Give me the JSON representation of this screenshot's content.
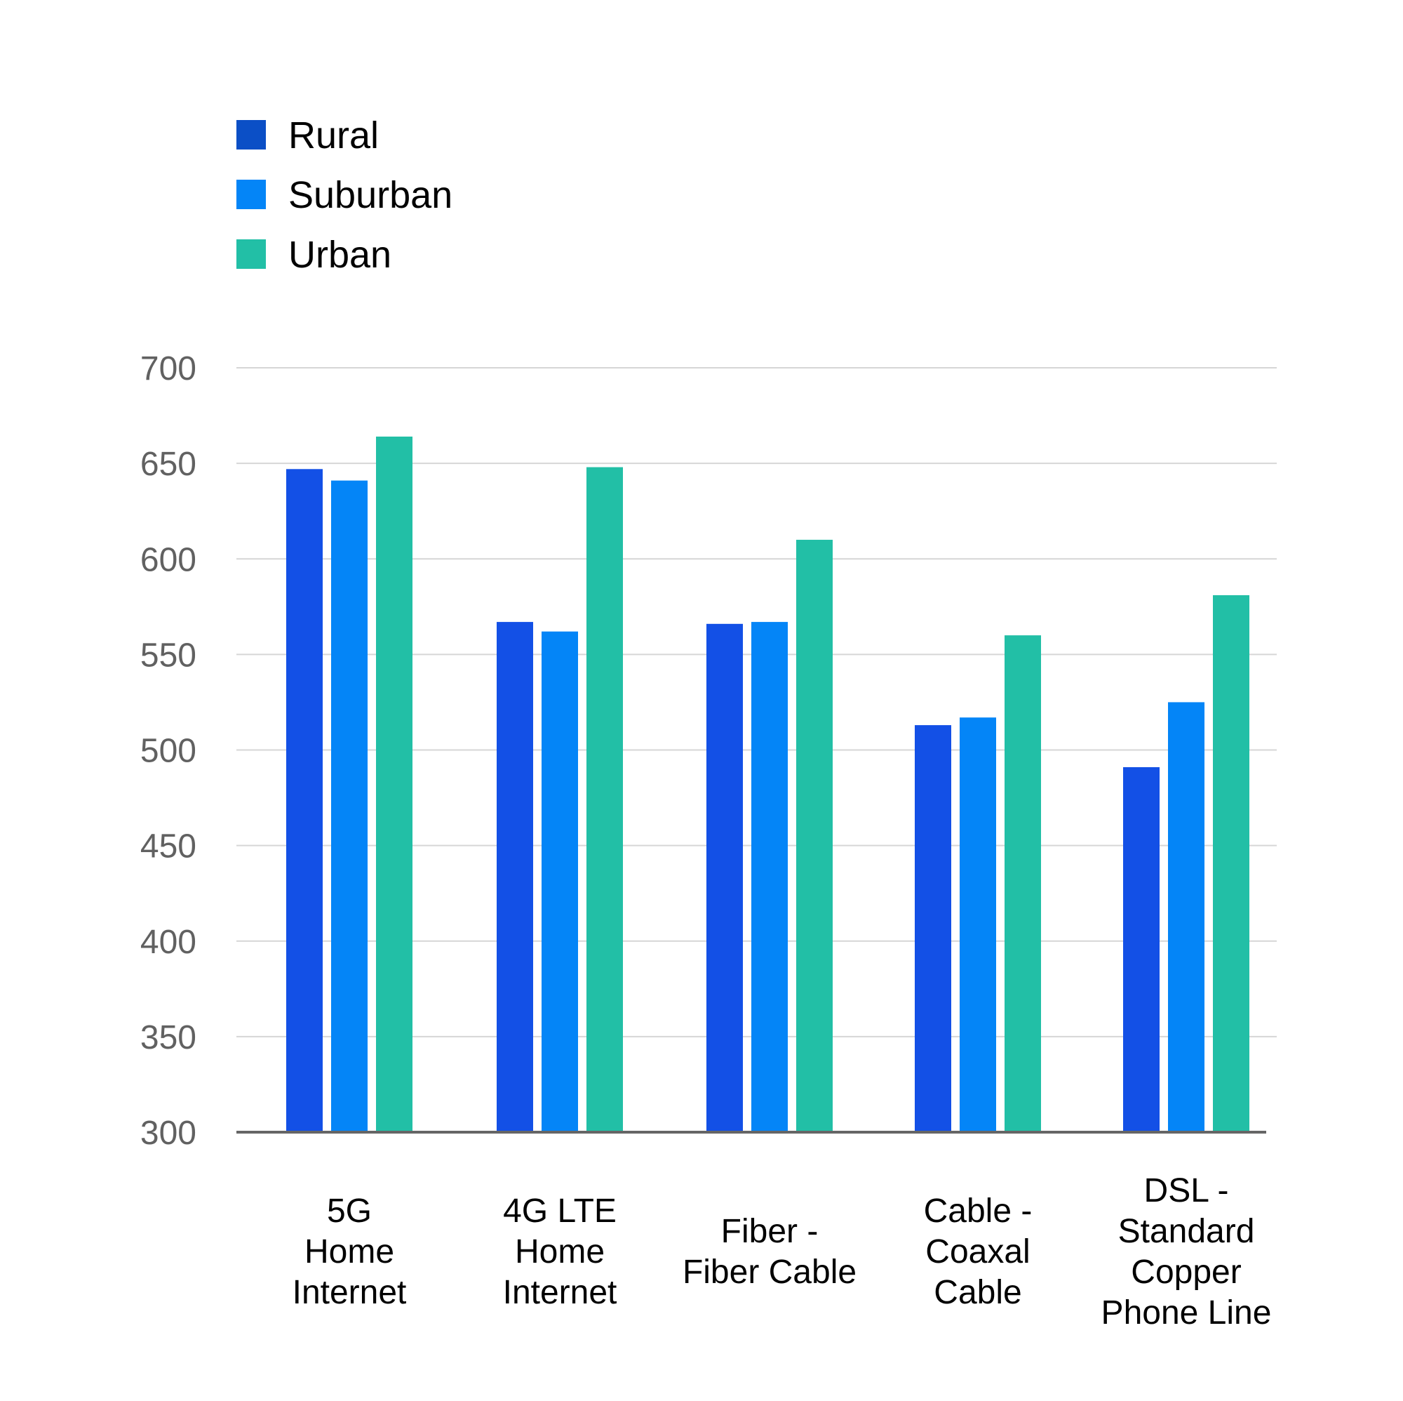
{
  "chart_data": {
    "type": "bar",
    "title": "",
    "xlabel": "",
    "ylabel": "",
    "ylim": [
      300,
      700
    ],
    "yticks": [
      300,
      350,
      400,
      450,
      500,
      550,
      600,
      650,
      700
    ],
    "grid": true,
    "legend_position": "top-left",
    "categories": [
      [
        "5G",
        "Home",
        "Internet"
      ],
      [
        "4G LTE",
        "Home",
        "Internet"
      ],
      [
        "Fiber -",
        "Fiber Cable"
      ],
      [
        "Cable -",
        "Coaxal",
        "Cable"
      ],
      [
        "DSL -",
        "Standard",
        "Copper",
        "Phone Line"
      ]
    ],
    "series": [
      {
        "name": "Rural",
        "color": "#1350e6",
        "legend_color": "#0b4fc6",
        "values": [
          647,
          567,
          566,
          513,
          491
        ]
      },
      {
        "name": "Suburban",
        "color": "#0485f7",
        "legend_color": "#0485f7",
        "values": [
          641,
          562,
          567,
          517,
          525
        ]
      },
      {
        "name": "Urban",
        "color": "#22bfa6",
        "legend_color": "#22bfa6",
        "values": [
          664,
          648,
          610,
          560,
          581
        ]
      }
    ]
  }
}
